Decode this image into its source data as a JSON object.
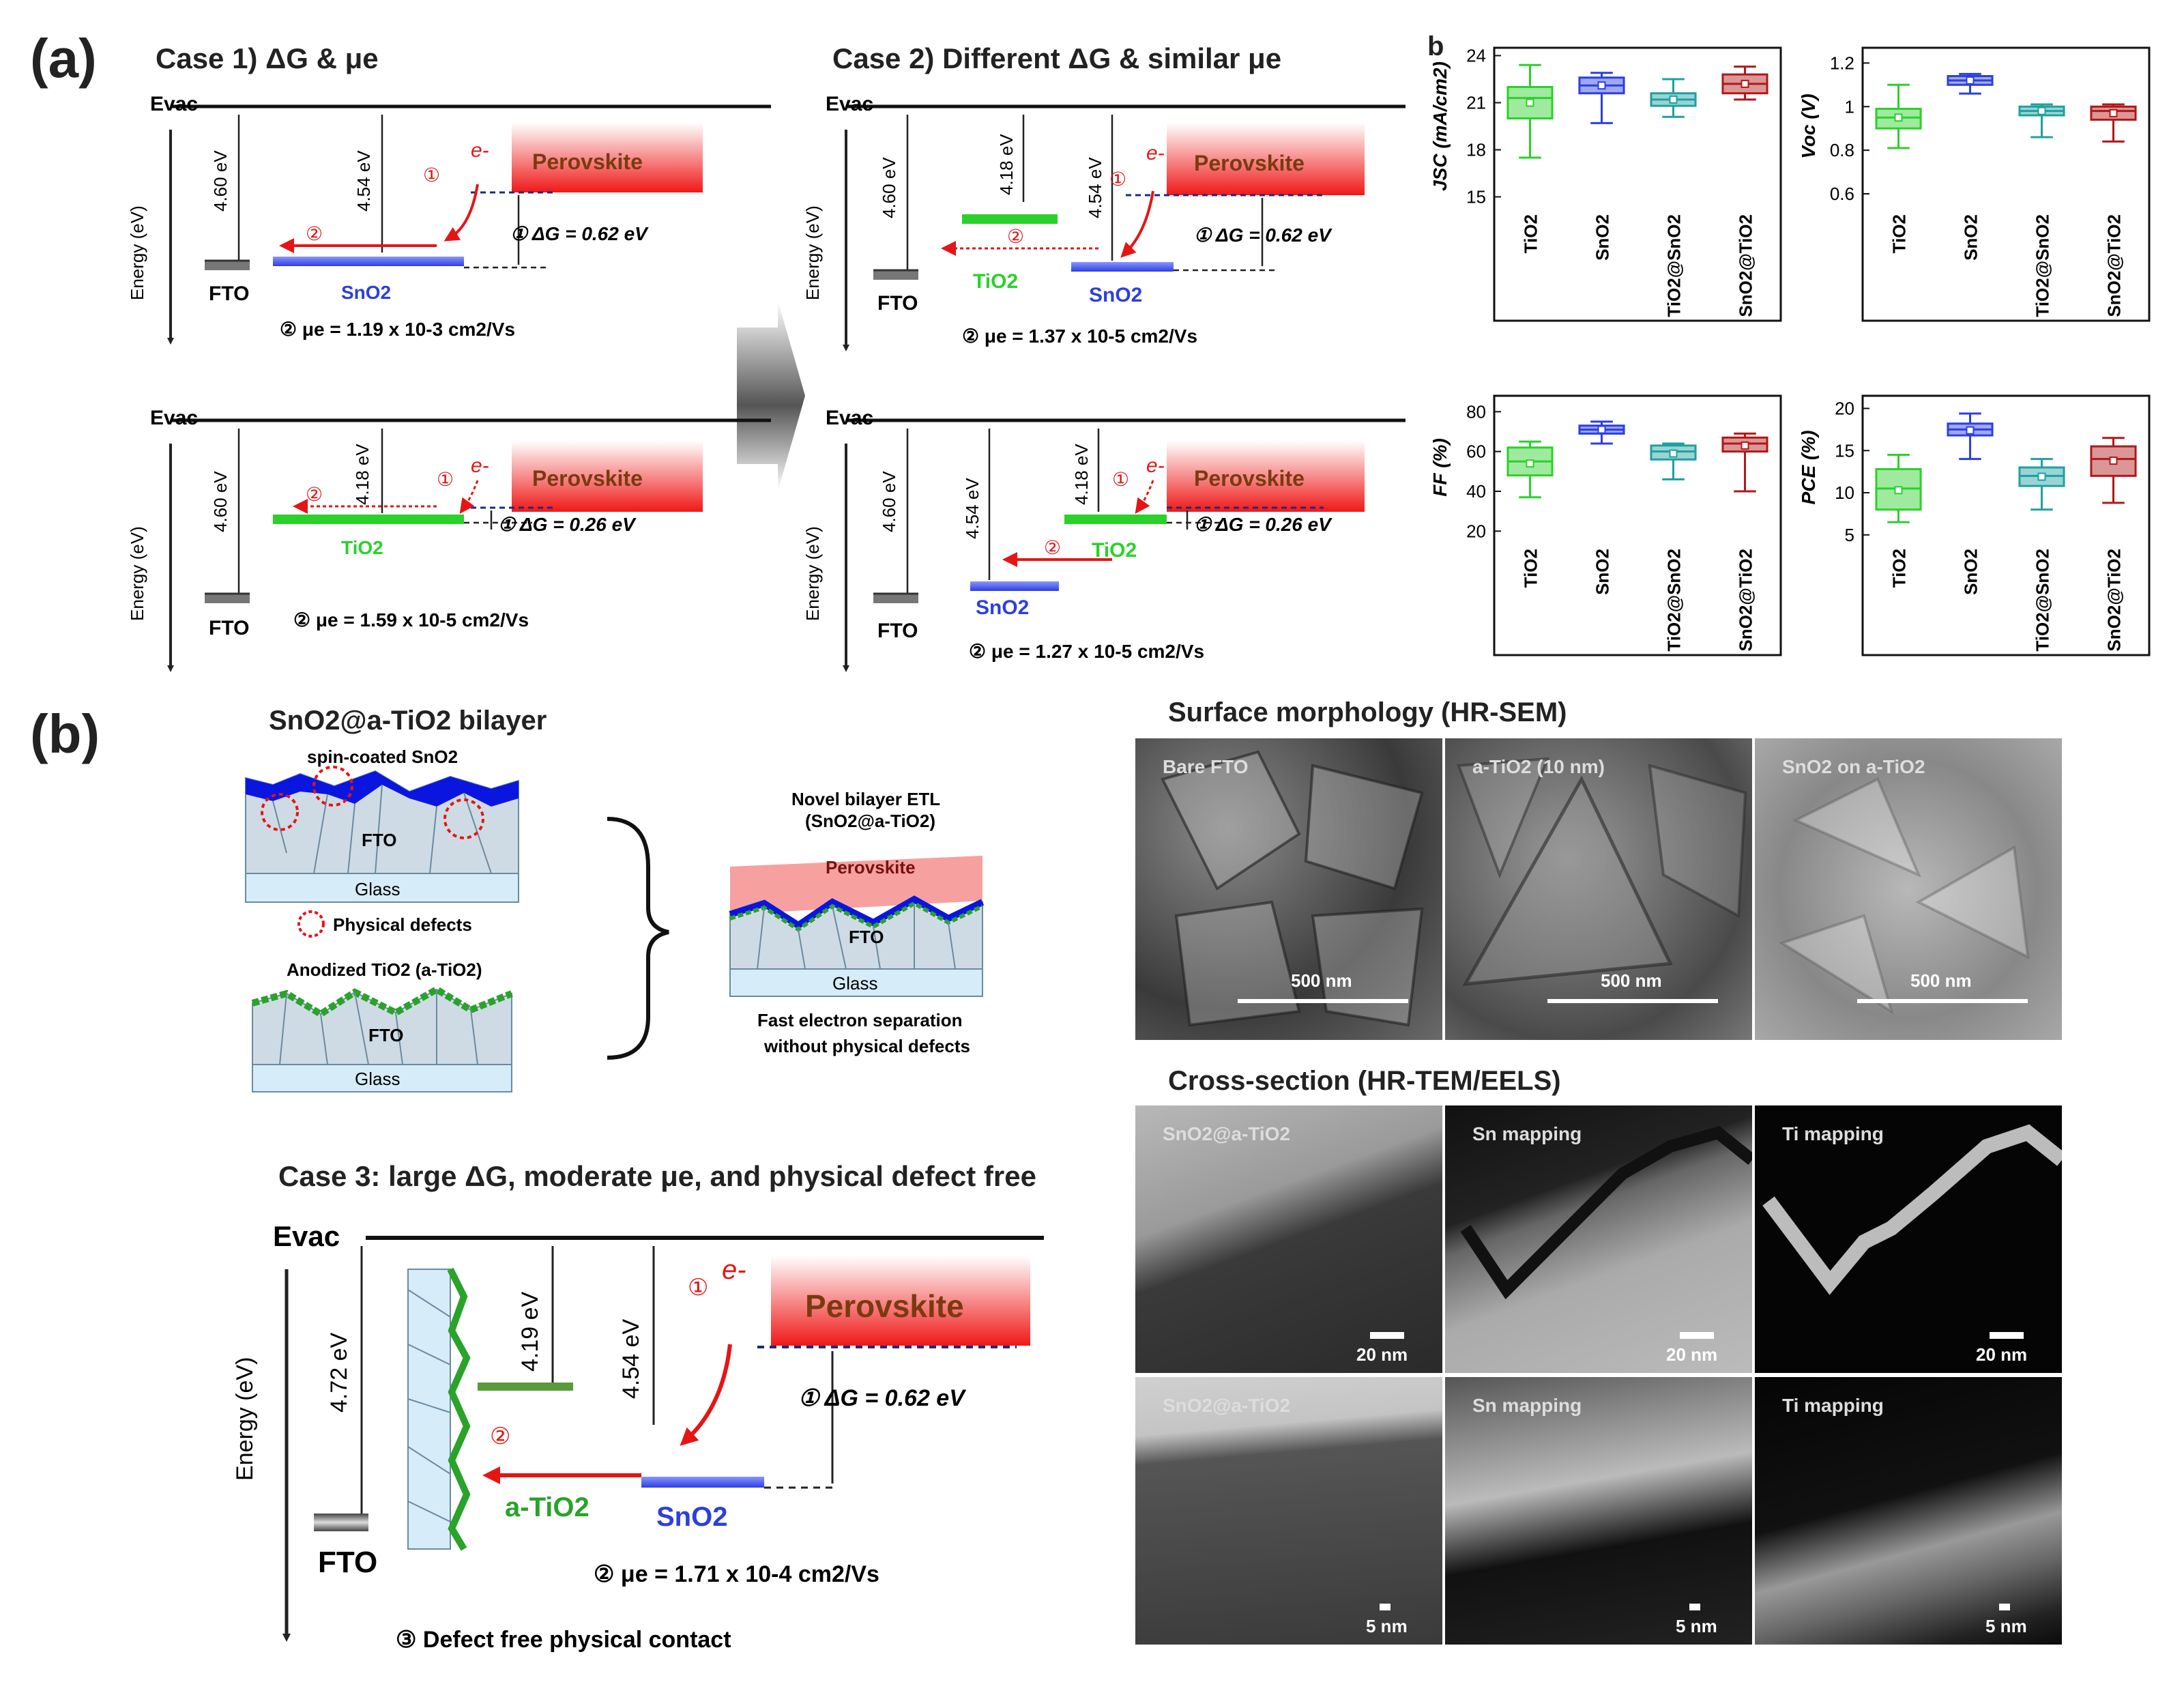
{
  "panel_a": {
    "label": "(a)",
    "case1_title": "Case 1) ΔG & μe",
    "case2_title": "Case 2) Different ΔG & similar μe",
    "diagrams": {
      "evac": "Evac",
      "energy_axis": "Energy (eV)",
      "fto": "FTO",
      "perovskite": "Perovskite",
      "electron": "e-",
      "step1": "①",
      "step2": "②",
      "sno2": "SnO2",
      "tio2": "TiO2",
      "v460": "4.60 eV",
      "v454": "4.54 eV",
      "v418": "4.18 eV",
      "dg062": "① ΔG = 0.62 eV",
      "dg026": "① ΔG = 0.26 eV",
      "mu_c1_top": "② μe = 1.19 x 10-3 cm2/Vs",
      "mu_c1_bot": "② μe = 1.59 x 10-5 cm2/Vs",
      "mu_c2_top": "② μe = 1.37 x 10-5 cm2/Vs",
      "mu_c2_bot": "② μe = 1.27 x 10-5 cm2/Vs"
    }
  },
  "panel_b_letter": "b",
  "colors": {
    "tio2": "#2bd12b",
    "sno2": "#2b3fe0",
    "tio2_at_sno2": "#1fa0a0",
    "sno2_at_tio2": "#b01818",
    "perovskite": "#f01818"
  },
  "chart_data": [
    {
      "type": "box",
      "ylabel": "JSC (mA/cm2)",
      "categories": [
        "TiO2",
        "SnO2",
        "TiO2@SnO2",
        "SnO2@TiO2"
      ],
      "ylim": [
        14.5,
        24.5
      ],
      "yticks": [
        15,
        18,
        21,
        24
      ],
      "boxes": [
        {
          "q1": 20.0,
          "median": 21.3,
          "q3": 22.0,
          "mean": 21.0,
          "min": 17.5,
          "max": 23.4
        },
        {
          "q1": 21.6,
          "median": 22.1,
          "q3": 22.6,
          "mean": 22.1,
          "min": 19.7,
          "max": 22.9
        },
        {
          "q1": 20.8,
          "median": 21.2,
          "q3": 21.6,
          "mean": 21.2,
          "min": 20.1,
          "max": 22.5
        },
        {
          "q1": 21.6,
          "median": 22.2,
          "q3": 22.8,
          "mean": 22.2,
          "min": 21.2,
          "max": 23.3
        }
      ]
    },
    {
      "type": "box",
      "ylabel": "Voc (V)",
      "categories": [
        "TiO2",
        "SnO2",
        "TiO2@SnO2",
        "SnO2@TiO2"
      ],
      "ylim": [
        0.55,
        1.27
      ],
      "yticks": [
        0.6,
        0.8,
        1.0,
        1.2
      ],
      "boxes": [
        {
          "q1": 0.9,
          "median": 0.95,
          "q3": 0.99,
          "mean": 0.95,
          "min": 0.81,
          "max": 1.1
        },
        {
          "q1": 1.1,
          "median": 1.12,
          "q3": 1.14,
          "mean": 1.12,
          "min": 1.06,
          "max": 1.15
        },
        {
          "q1": 0.96,
          "median": 0.98,
          "q3": 1.0,
          "mean": 0.98,
          "min": 0.86,
          "max": 1.01
        },
        {
          "q1": 0.94,
          "median": 0.98,
          "q3": 1.0,
          "mean": 0.97,
          "min": 0.84,
          "max": 1.01
        }
      ]
    },
    {
      "type": "box",
      "ylabel": "FF (%)",
      "categories": [
        "TiO2",
        "SnO2",
        "TiO2@SnO2",
        "SnO2@TiO2"
      ],
      "ylim": [
        16,
        88
      ],
      "yticks": [
        20,
        40,
        60,
        80
      ],
      "boxes": [
        {
          "q1": 48,
          "median": 55,
          "q3": 62,
          "mean": 54,
          "min": 37,
          "max": 65
        },
        {
          "q1": 69,
          "median": 71,
          "q3": 73,
          "mean": 71,
          "min": 64,
          "max": 75
        },
        {
          "q1": 56,
          "median": 60,
          "q3": 63,
          "mean": 59,
          "min": 46,
          "max": 64
        },
        {
          "q1": 60,
          "median": 64,
          "q3": 67,
          "mean": 63,
          "min": 40,
          "max": 69
        }
      ]
    },
    {
      "type": "box",
      "ylabel": "PCE (%)",
      "categories": [
        "TiO2",
        "SnO2",
        "TiO2@SnO2",
        "SnO2@TiO2"
      ],
      "ylim": [
        4.5,
        21.5
      ],
      "yticks": [
        5,
        10,
        15,
        20
      ],
      "boxes": [
        {
          "q1": 8.0,
          "median": 10.5,
          "q3": 12.8,
          "mean": 10.3,
          "min": 6.5,
          "max": 14.5
        },
        {
          "q1": 16.8,
          "median": 17.5,
          "q3": 18.2,
          "mean": 17.4,
          "min": 14.0,
          "max": 19.4
        },
        {
          "q1": 10.8,
          "median": 12.0,
          "q3": 13.0,
          "mean": 11.9,
          "min": 8.0,
          "max": 14.0
        },
        {
          "q1": 12.0,
          "median": 14.0,
          "q3": 15.5,
          "mean": 13.8,
          "min": 8.8,
          "max": 16.5
        }
      ]
    }
  ],
  "panel_b": {
    "label": "(b)",
    "bilayer_title": "SnO2@a-TiO2 bilayer",
    "spin_coated": "spin-coated SnO2",
    "fto": "FTO",
    "glass": "Glass",
    "physical_defects": "Physical defects",
    "anodized": "Anodized TiO2 (a-TiO2)",
    "novel_title1": "Novel bilayer ETL",
    "novel_title2": "(SnO2@a-TiO2)",
    "perovskite": "Perovskite",
    "fast1": "Fast electron separation",
    "fast2": "without physical defects",
    "case3_title": "Case 3: large ΔG, moderate μe, and physical defect free",
    "evac": "Evac",
    "energy_axis": "Energy (eV)",
    "v472": "4.72 eV",
    "v419": "4.19 eV",
    "v454": "4.54 eV",
    "electron": "e-",
    "step1": "①",
    "step2": "②",
    "dg": "① ΔG = 0.62 eV",
    "atio2": "a-TiO2",
    "sno2": "SnO2",
    "mu": "② μe = 1.71 x 10-4 cm2/Vs",
    "defect_free": "③ Defect free physical contact",
    "sem_title": "Surface morphology (HR-SEM)",
    "sem_images": [
      {
        "caption": "Bare FTO",
        "scale": "500 nm"
      },
      {
        "caption": "a-TiO2 (10 nm)",
        "scale": "500 nm"
      },
      {
        "caption": "SnO2 on a-TiO2",
        "scale": "500 nm"
      }
    ],
    "tem_title": "Cross-section (HR-TEM/EELS)",
    "tem_row1": [
      {
        "caption": "SnO2@a-TiO2",
        "scale": "20 nm"
      },
      {
        "caption": "Sn mapping",
        "scale": "20 nm"
      },
      {
        "caption": "Ti mapping",
        "scale": "20 nm"
      }
    ],
    "tem_row2": [
      {
        "caption": "SnO2@a-TiO2",
        "scale": "5 nm"
      },
      {
        "caption": "Sn mapping",
        "scale": "5 nm"
      },
      {
        "caption": "Ti mapping",
        "scale": "5 nm"
      }
    ]
  }
}
